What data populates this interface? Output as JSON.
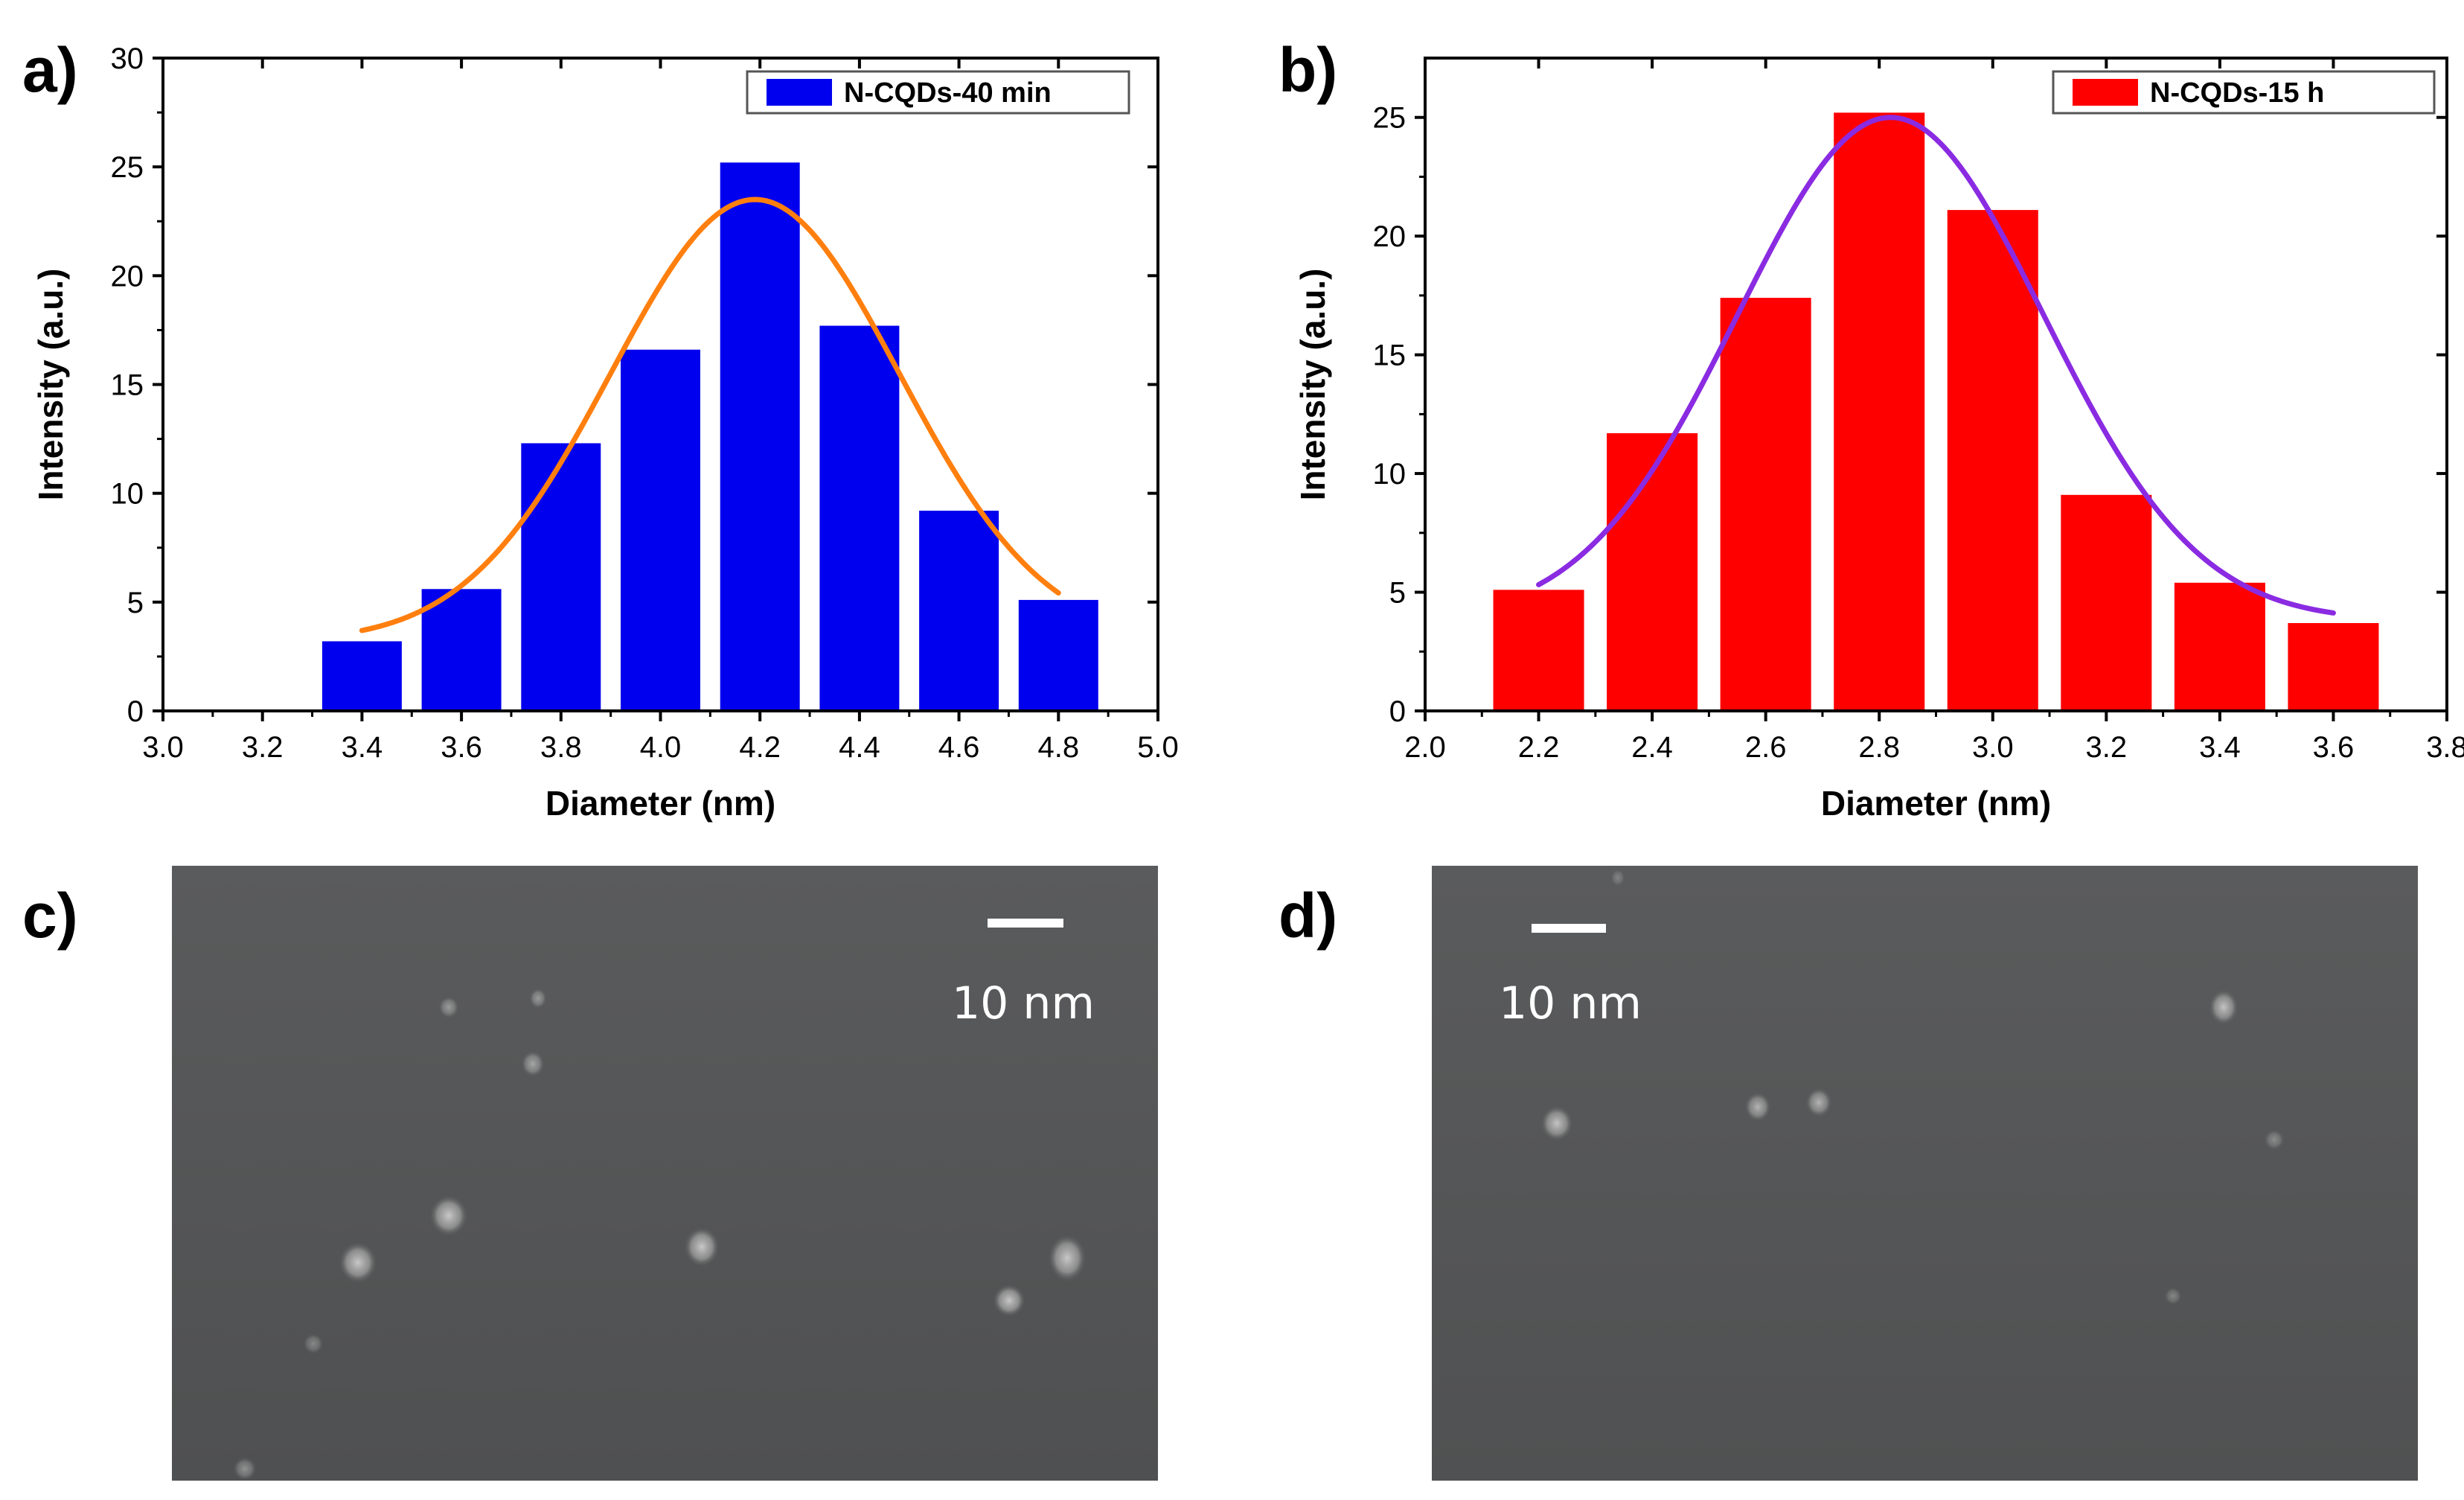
{
  "panels": {
    "a": "a)",
    "b": "b)",
    "c": "c)",
    "d": "d)"
  },
  "chart_data": [
    {
      "id": "chart-a",
      "type": "bar",
      "xlabel": "Diameter (nm)",
      "ylabel": "Intensity (a.u.)",
      "xlim": [
        3.0,
        5.0
      ],
      "ylim": [
        0,
        30
      ],
      "xticks": [
        3.0,
        3.2,
        3.4,
        3.6,
        3.8,
        4.0,
        4.2,
        4.4,
        4.6,
        4.8,
        5.0
      ],
      "yticks": [
        0,
        5,
        10,
        15,
        20,
        25,
        30
      ],
      "xtick_labels": [
        "3.0",
        "3.2",
        "3.4",
        "3.6",
        "3.8",
        "4.0",
        "4.2",
        "4.4",
        "4.6",
        "4.8",
        "5.0"
      ],
      "ytick_labels": [
        "0",
        "5",
        "10",
        "15",
        "20",
        "25",
        "30"
      ],
      "bar_width": 0.16,
      "bar_color": "#0000ee",
      "categories": [
        3.4,
        3.6,
        3.8,
        4.0,
        4.2,
        4.4,
        4.6,
        4.8
      ],
      "values": [
        3.2,
        5.6,
        12.3,
        16.6,
        25.2,
        17.7,
        9.2,
        5.1
      ],
      "legend": "N-CQDs-40 min",
      "legend_position": "top-right",
      "fit": {
        "type": "gaussian",
        "color": "#ff7f0e",
        "center": 4.19,
        "amplitude": 20.3,
        "sigma": 0.29,
        "baseline": 3.2,
        "x_range": [
          3.4,
          4.8
        ]
      }
    },
    {
      "id": "chart-b",
      "type": "bar",
      "xlabel": "Diameter (nm)",
      "ylabel": "Intensity (a.u.)",
      "xlim": [
        2.0,
        3.8
      ],
      "ylim": [
        0,
        27.5
      ],
      "xticks": [
        2.0,
        2.2,
        2.4,
        2.6,
        2.8,
        3.0,
        3.2,
        3.4,
        3.6,
        3.8
      ],
      "yticks": [
        0,
        5,
        10,
        15,
        20,
        25
      ],
      "xtick_labels": [
        "2.0",
        "2.2",
        "2.4",
        "2.6",
        "2.8",
        "3.0",
        "3.2",
        "3.4",
        "3.6",
        "3.8"
      ],
      "ytick_labels": [
        "0",
        "5",
        "10",
        "15",
        "20",
        "25"
      ],
      "bar_width": 0.16,
      "bar_color": "#ff0000",
      "categories": [
        2.2,
        2.4,
        2.6,
        2.8,
        3.0,
        3.2,
        3.4,
        3.6
      ],
      "values": [
        5.1,
        11.7,
        17.4,
        25.2,
        21.1,
        9.1,
        5.4,
        3.7
      ],
      "legend": "N-CQDs-15 h",
      "legend_position": "top-right",
      "fit": {
        "type": "gaussian",
        "color": "#8a2be2",
        "center": 2.82,
        "amplitude": 21.2,
        "sigma": 0.27,
        "baseline": 3.8,
        "x_range": [
          2.2,
          3.6
        ]
      }
    }
  ],
  "images": [
    {
      "id": "tem-c",
      "scale_bar_label": "10 nm",
      "background_color": "#555657"
    },
    {
      "id": "tem-d",
      "scale_bar_label": "10 nm",
      "background_color": "#555657"
    }
  ]
}
